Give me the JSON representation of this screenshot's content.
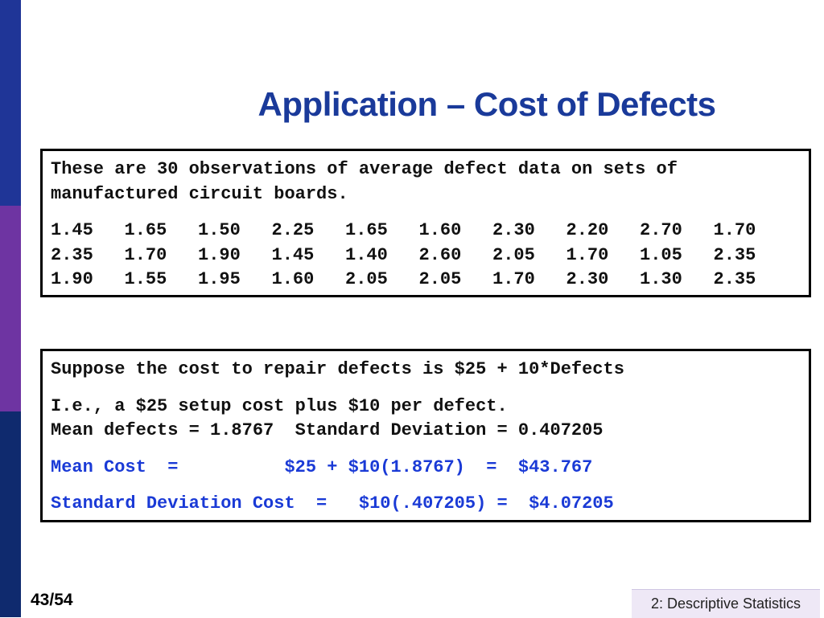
{
  "slide": {
    "title": "Application – Cost of Defects",
    "page_number": "43/54",
    "footer": "2: Descriptive Statistics"
  },
  "data_box": {
    "intro_line1": "These are 30 observations of average defect data on sets of",
    "intro_line2": "manufactured circuit boards.",
    "rows": [
      [
        "1.45",
        "1.65",
        "1.50",
        "2.25",
        "1.65",
        "1.60",
        "2.30",
        "2.20",
        "2.70",
        "1.70"
      ],
      [
        "2.35",
        "1.70",
        "1.90",
        "1.45",
        "1.40",
        "2.60",
        "2.05",
        "1.70",
        "1.05",
        "2.35"
      ],
      [
        "1.90",
        "1.55",
        "1.95",
        "1.60",
        "2.05",
        "2.05",
        "1.70",
        "2.30",
        "1.30",
        "2.35"
      ]
    ]
  },
  "cost_box": {
    "suppose": "Suppose the cost to repair defects is $25 + 10*Defects",
    "ie": "I.e., a $25 setup cost plus $10 per defect.",
    "mean_sd": "Mean defects = 1.8767  Standard Deviation = 0.407205",
    "mean_cost": "Mean Cost  =          $25 + $10(1.8767)  =  $43.767",
    "sd_cost": "Standard Deviation Cost  =   $10(.407205) =  $4.07205"
  },
  "colors": {
    "title": "#1a3a9a",
    "highlight": "#1a3ad6",
    "sidebar_top": "#1f3597",
    "sidebar_mid": "#6e34a2",
    "sidebar_bottom": "#0f2a6e"
  }
}
